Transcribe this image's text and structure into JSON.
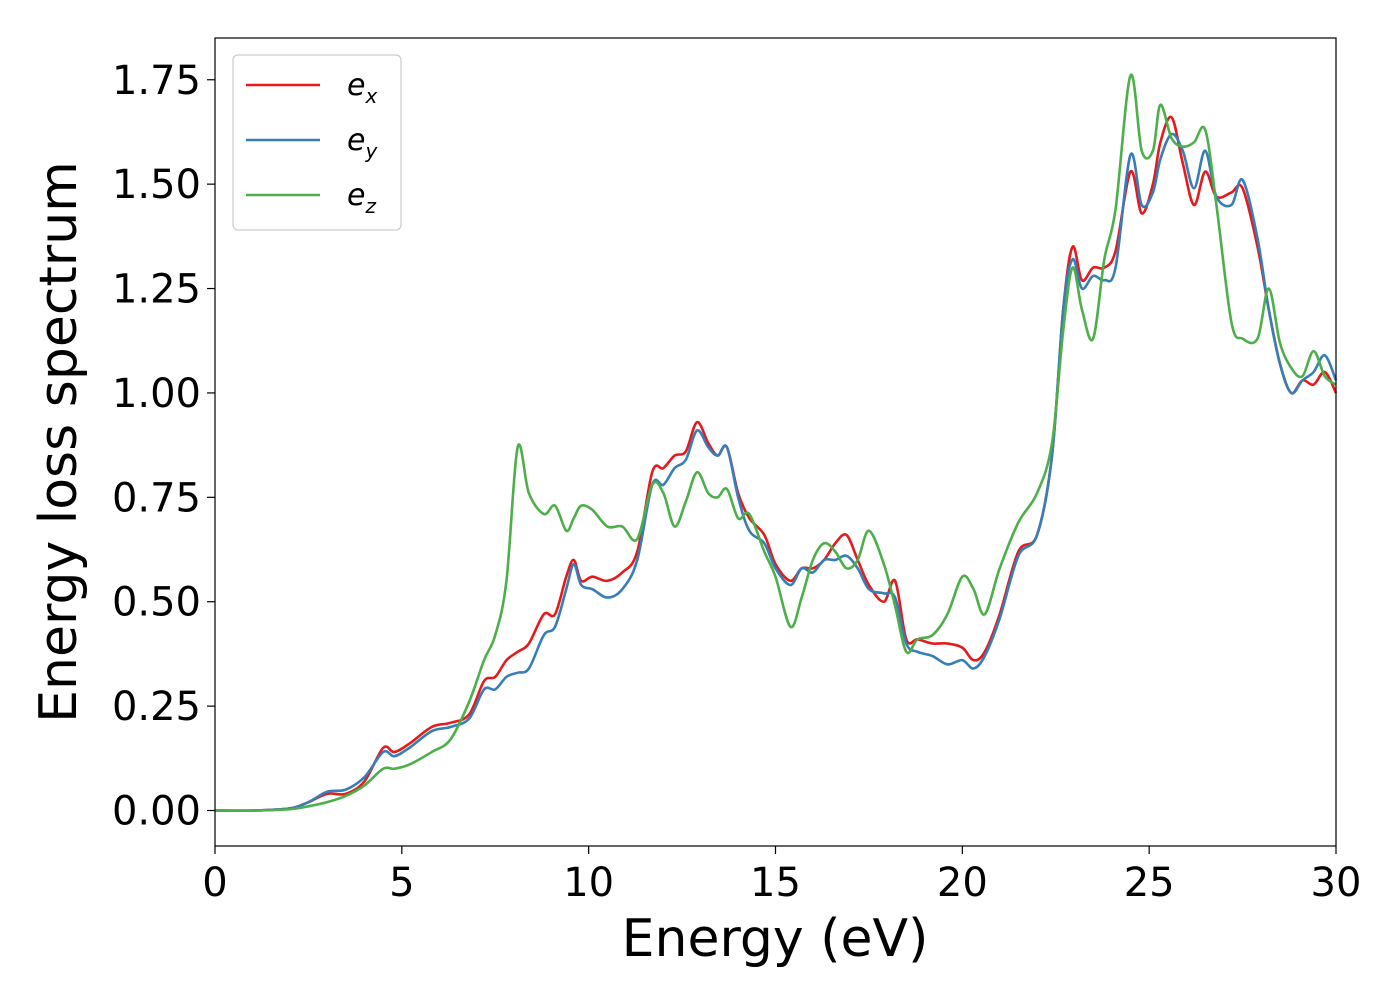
{
  "chart_data": {
    "type": "line",
    "title": "",
    "xlabel": "Energy (eV)",
    "ylabel": "Energy loss spectrum",
    "xlim": [
      0,
      30
    ],
    "ylim": [
      -0.085,
      1.85
    ],
    "xticks": [
      0,
      5,
      10,
      15,
      20,
      25,
      30
    ],
    "xtick_labels": [
      "0",
      "5",
      "10",
      "15",
      "20",
      "25",
      "30"
    ],
    "yticks": [
      0.0,
      0.25,
      0.5,
      0.75,
      1.0,
      1.25,
      1.5,
      1.75
    ],
    "ytick_labels": [
      "0.00",
      "0.25",
      "0.50",
      "0.75",
      "1.00",
      "1.25",
      "1.50",
      "1.75"
    ],
    "grid": false,
    "legend_position": "top-left",
    "series": [
      {
        "name": "e",
        "subscript": "x",
        "color": "#e41a1c",
        "x": [
          0,
          1,
          2,
          2.5,
          3,
          3.5,
          4,
          4.5,
          4.8,
          5.2,
          5.8,
          6.3,
          6.8,
          7.2,
          7.5,
          7.8,
          8.1,
          8.4,
          8.8,
          9.1,
          9.4,
          9.6,
          9.8,
          10.1,
          10.5,
          10.9,
          11.3,
          11.7,
          12.0,
          12.3,
          12.6,
          12.9,
          13.2,
          13.45,
          13.7,
          14.0,
          14.3,
          14.7,
          15.0,
          15.4,
          15.7,
          16.0,
          16.3,
          16.6,
          16.9,
          17.2,
          17.5,
          17.9,
          18.2,
          18.5,
          18.8,
          19.2,
          19.6,
          20.0,
          20.3,
          20.6,
          21.0,
          21.5,
          22.0,
          22.4,
          22.7,
          22.95,
          23.2,
          23.5,
          23.8,
          24.1,
          24.5,
          24.8,
          25.1,
          25.3,
          25.6,
          25.9,
          26.2,
          26.5,
          26.8,
          27.2,
          27.5,
          27.9,
          28.2,
          28.5,
          28.8,
          29.1,
          29.4,
          29.7,
          30.0
        ],
        "y": [
          0.0,
          0.0,
          0.005,
          0.02,
          0.04,
          0.04,
          0.07,
          0.15,
          0.14,
          0.16,
          0.2,
          0.21,
          0.23,
          0.31,
          0.32,
          0.36,
          0.38,
          0.4,
          0.47,
          0.47,
          0.56,
          0.6,
          0.55,
          0.56,
          0.55,
          0.57,
          0.62,
          0.81,
          0.82,
          0.85,
          0.86,
          0.93,
          0.88,
          0.85,
          0.87,
          0.76,
          0.7,
          0.66,
          0.59,
          0.55,
          0.58,
          0.58,
          0.6,
          0.64,
          0.66,
          0.6,
          0.54,
          0.5,
          0.55,
          0.41,
          0.41,
          0.4,
          0.4,
          0.39,
          0.36,
          0.38,
          0.47,
          0.62,
          0.66,
          0.85,
          1.2,
          1.35,
          1.27,
          1.3,
          1.3,
          1.34,
          1.53,
          1.43,
          1.5,
          1.6,
          1.66,
          1.55,
          1.45,
          1.53,
          1.47,
          1.48,
          1.49,
          1.35,
          1.2,
          1.07,
          1.0,
          1.03,
          1.02,
          1.05,
          1.0
        ]
      },
      {
        "name": "e",
        "subscript": "y",
        "color": "#377eb8",
        "x": [
          0,
          1,
          2,
          2.5,
          3,
          3.5,
          4,
          4.5,
          4.8,
          5.2,
          5.8,
          6.3,
          6.8,
          7.2,
          7.5,
          7.8,
          8.1,
          8.4,
          8.8,
          9.1,
          9.4,
          9.6,
          9.8,
          10.1,
          10.5,
          10.9,
          11.3,
          11.7,
          12.0,
          12.3,
          12.6,
          12.9,
          13.2,
          13.45,
          13.7,
          14.0,
          14.3,
          14.7,
          15.0,
          15.4,
          15.7,
          16.0,
          16.3,
          16.6,
          16.9,
          17.2,
          17.5,
          17.9,
          18.2,
          18.5,
          18.8,
          19.2,
          19.6,
          20.0,
          20.3,
          20.6,
          21.0,
          21.5,
          22.0,
          22.4,
          22.7,
          22.95,
          23.2,
          23.5,
          23.8,
          24.1,
          24.5,
          24.8,
          25.1,
          25.3,
          25.6,
          25.9,
          26.2,
          26.5,
          26.8,
          27.2,
          27.5,
          27.9,
          28.2,
          28.5,
          28.8,
          29.1,
          29.4,
          29.7,
          30.0
        ],
        "y": [
          0.0,
          0.0,
          0.005,
          0.02,
          0.045,
          0.05,
          0.08,
          0.14,
          0.13,
          0.15,
          0.19,
          0.2,
          0.22,
          0.29,
          0.29,
          0.32,
          0.33,
          0.34,
          0.42,
          0.44,
          0.53,
          0.59,
          0.54,
          0.53,
          0.51,
          0.53,
          0.6,
          0.78,
          0.78,
          0.82,
          0.84,
          0.91,
          0.87,
          0.85,
          0.87,
          0.75,
          0.67,
          0.64,
          0.58,
          0.54,
          0.58,
          0.57,
          0.6,
          0.6,
          0.61,
          0.58,
          0.53,
          0.52,
          0.51,
          0.4,
          0.38,
          0.37,
          0.35,
          0.36,
          0.34,
          0.37,
          0.46,
          0.61,
          0.66,
          0.85,
          1.2,
          1.32,
          1.25,
          1.28,
          1.27,
          1.3,
          1.57,
          1.45,
          1.48,
          1.56,
          1.62,
          1.58,
          1.49,
          1.58,
          1.47,
          1.45,
          1.51,
          1.37,
          1.2,
          1.07,
          1.0,
          1.03,
          1.05,
          1.09,
          1.03
        ]
      },
      {
        "name": "e",
        "subscript": "z",
        "color": "#4daf4a",
        "x": [
          0,
          1,
          2,
          2.5,
          3,
          3.5,
          4,
          4.5,
          4.8,
          5.2,
          5.8,
          6.3,
          6.8,
          7.2,
          7.5,
          7.8,
          8.1,
          8.4,
          8.8,
          9.1,
          9.4,
          9.6,
          9.8,
          10.1,
          10.5,
          10.9,
          11.3,
          11.7,
          12.0,
          12.3,
          12.6,
          12.9,
          13.2,
          13.45,
          13.7,
          14.0,
          14.3,
          14.7,
          15.0,
          15.4,
          15.7,
          16.0,
          16.3,
          16.6,
          16.9,
          17.2,
          17.5,
          17.9,
          18.2,
          18.5,
          18.8,
          19.2,
          19.6,
          20.0,
          20.3,
          20.6,
          21.0,
          21.5,
          22.0,
          22.4,
          22.7,
          22.95,
          23.2,
          23.5,
          23.8,
          24.1,
          24.5,
          24.8,
          25.1,
          25.3,
          25.6,
          25.9,
          26.2,
          26.5,
          26.8,
          27.2,
          27.5,
          27.9,
          28.2,
          28.5,
          28.8,
          29.1,
          29.4,
          29.7,
          30.0
        ],
        "y": [
          0.0,
          0.0,
          0.003,
          0.01,
          0.02,
          0.035,
          0.06,
          0.1,
          0.1,
          0.11,
          0.14,
          0.17,
          0.26,
          0.36,
          0.42,
          0.55,
          0.87,
          0.76,
          0.71,
          0.73,
          0.67,
          0.7,
          0.73,
          0.72,
          0.68,
          0.68,
          0.65,
          0.78,
          0.76,
          0.68,
          0.74,
          0.81,
          0.76,
          0.75,
          0.77,
          0.7,
          0.71,
          0.62,
          0.56,
          0.44,
          0.51,
          0.6,
          0.64,
          0.62,
          0.58,
          0.6,
          0.67,
          0.59,
          0.49,
          0.38,
          0.41,
          0.42,
          0.47,
          0.56,
          0.53,
          0.47,
          0.58,
          0.69,
          0.76,
          0.88,
          1.15,
          1.3,
          1.2,
          1.13,
          1.32,
          1.44,
          1.76,
          1.58,
          1.58,
          1.69,
          1.61,
          1.59,
          1.6,
          1.63,
          1.45,
          1.17,
          1.13,
          1.13,
          1.25,
          1.12,
          1.06,
          1.04,
          1.1,
          1.04,
          1.02
        ]
      }
    ]
  }
}
